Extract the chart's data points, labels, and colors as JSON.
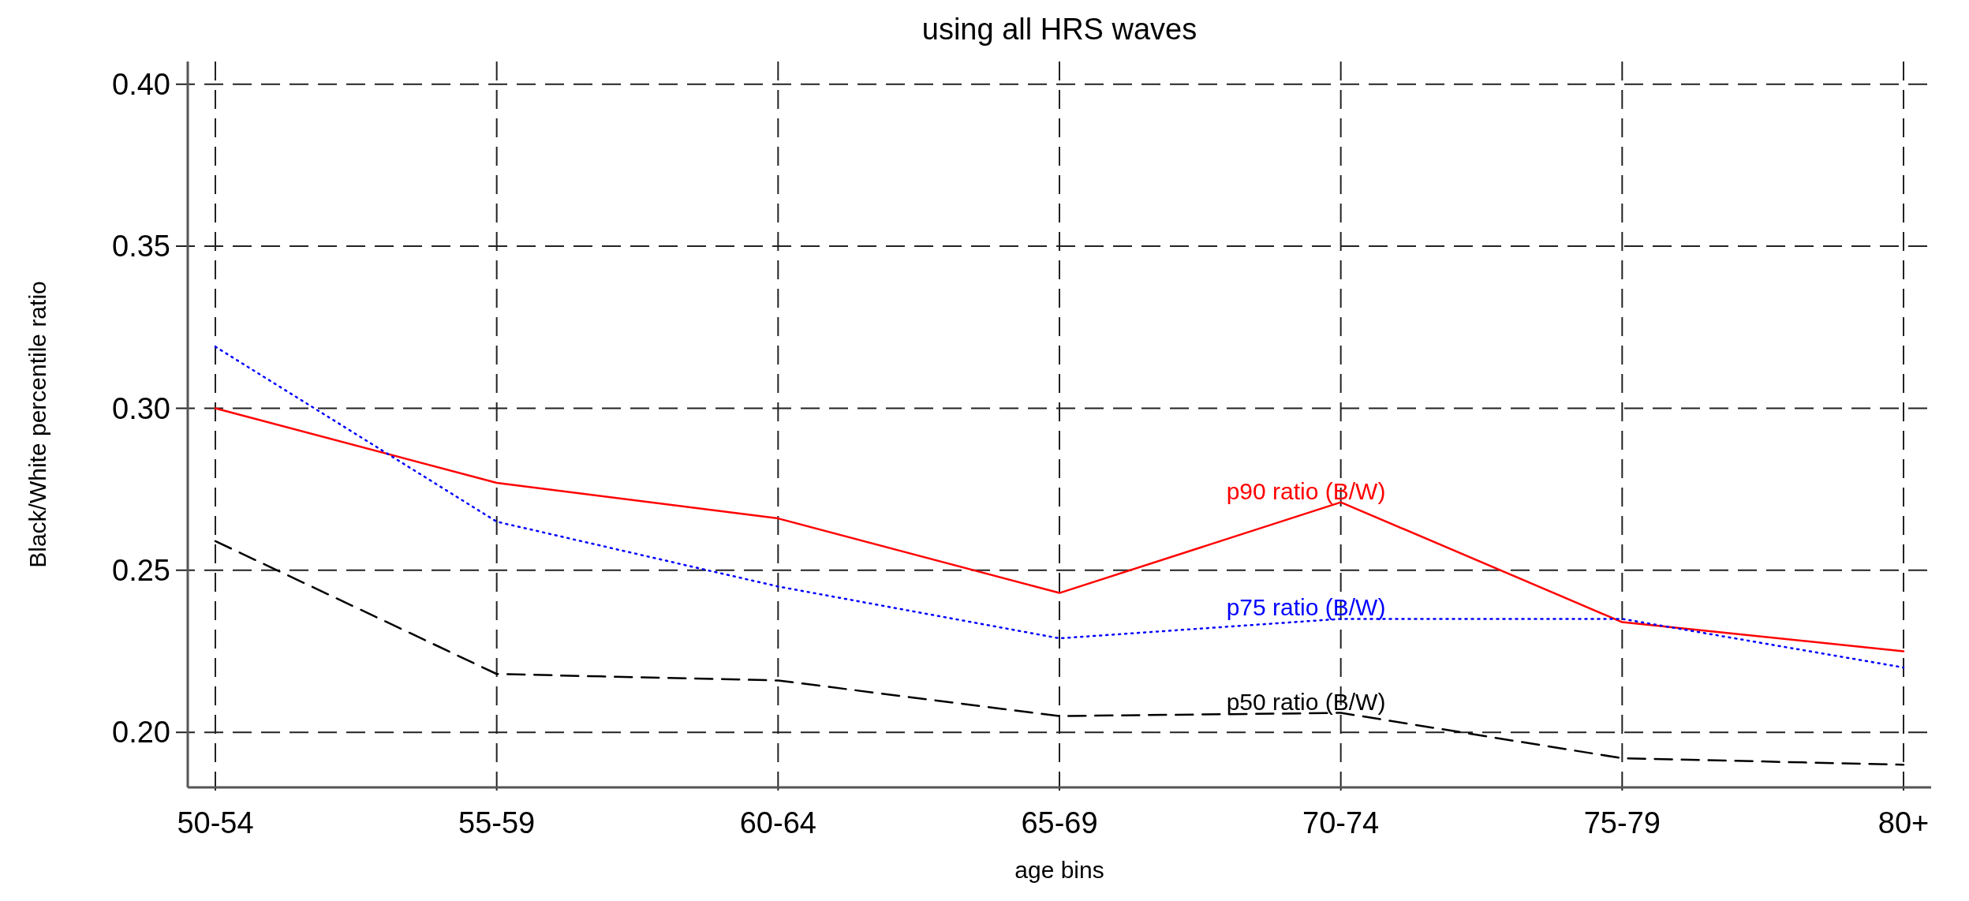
{
  "chart_data": {
    "type": "line",
    "title": "using all HRS waves",
    "xlabel": "age bins",
    "ylabel": "Black/White percentile ratio",
    "categories": [
      "50-54",
      "55-59",
      "60-64",
      "65-69",
      "70-74",
      "75-79",
      "80+"
    ],
    "series": [
      {
        "name": "p90 ratio (B/W)",
        "color": "#ff0000",
        "line_style": "solid",
        "values": [
          0.3,
          0.277,
          0.266,
          0.243,
          0.271,
          0.234,
          0.225
        ]
      },
      {
        "name": "p75 ratio (B/W)",
        "color": "#0000ff",
        "line_style": "dotted",
        "values": [
          0.319,
          0.265,
          0.245,
          0.229,
          0.235,
          0.235,
          0.22
        ]
      },
      {
        "name": "p50 ratio (B/W)",
        "color": "#000000",
        "line_style": "dashed",
        "values": [
          0.259,
          0.218,
          0.216,
          0.205,
          0.206,
          0.192,
          0.19
        ]
      }
    ],
    "ylim": [
      0.183,
      0.407
    ],
    "yticks": [
      {
        "value": 0.2,
        "label": "0.20"
      },
      {
        "value": 0.25,
        "label": "0.25"
      },
      {
        "value": 0.3,
        "label": "0.30"
      },
      {
        "value": 0.35,
        "label": "0.35"
      },
      {
        "value": 0.4,
        "label": "0.40"
      }
    ],
    "grid": true,
    "legend": false,
    "marker": "none"
  }
}
